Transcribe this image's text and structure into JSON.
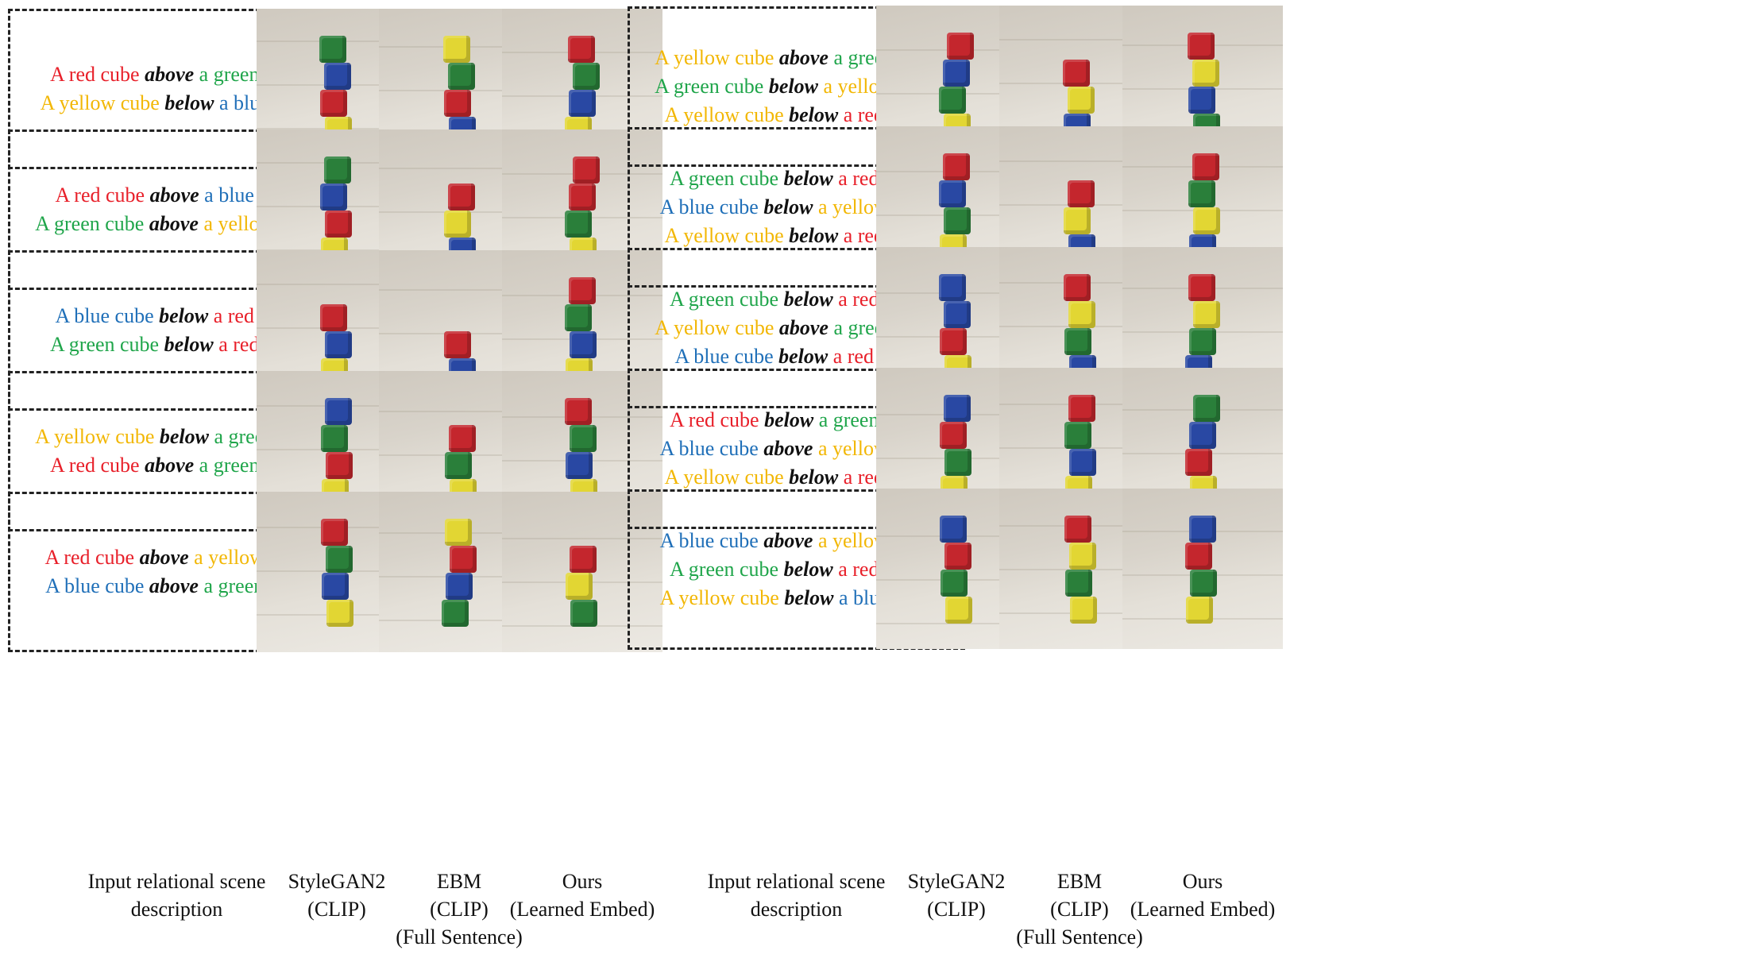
{
  "colors": {
    "red": "#e8202a",
    "green": "#1fa54a",
    "blue": "#1f6fb8",
    "yellow": "#f2b705"
  },
  "left_descriptions": [
    [
      [
        {
          "t": "A red cube ",
          "c": "red"
        },
        {
          "t": "above",
          "r": 1
        },
        {
          "t": " a green cube",
          "c": "green"
        }
      ],
      [
        {
          "t": "A yellow cube ",
          "c": "yellow"
        },
        {
          "t": "below",
          "r": 1
        },
        {
          "t": " a blue cube",
          "c": "blue"
        }
      ]
    ],
    [
      [
        {
          "t": "A red cube ",
          "c": "red"
        },
        {
          "t": "above",
          "r": 1
        },
        {
          "t": " a blue cube",
          "c": "blue"
        }
      ],
      [
        {
          "t": "A green cube ",
          "c": "green"
        },
        {
          "t": "above",
          "r": 1
        },
        {
          "t": " a yellow cube",
          "c": "yellow"
        }
      ]
    ],
    [
      [
        {
          "t": "A blue cube ",
          "c": "blue"
        },
        {
          "t": "below",
          "r": 1
        },
        {
          "t": " a red cube",
          "c": "red"
        }
      ],
      [
        {
          "t": "A green cube ",
          "c": "green"
        },
        {
          "t": "below",
          "r": 1
        },
        {
          "t": " a red cube",
          "c": "red"
        }
      ]
    ],
    [
      [
        {
          "t": "A yellow cube ",
          "c": "yellow"
        },
        {
          "t": "below",
          "r": 1
        },
        {
          "t": " a green cube",
          "c": "green"
        }
      ],
      [
        {
          "t": "A red cube ",
          "c": "red"
        },
        {
          "t": "above",
          "r": 1
        },
        {
          "t": " a green cube",
          "c": "green"
        }
      ]
    ],
    [
      [
        {
          "t": "A red cube ",
          "c": "red"
        },
        {
          "t": "above",
          "r": 1
        },
        {
          "t": " a yellow cube",
          "c": "yellow"
        }
      ],
      [
        {
          "t": "A blue cube ",
          "c": "blue"
        },
        {
          "t": "above",
          "r": 1
        },
        {
          "t": " a green cube",
          "c": "green"
        }
      ]
    ]
  ],
  "right_descriptions": [
    [
      [
        {
          "t": "A yellow cube ",
          "c": "yellow"
        },
        {
          "t": "above",
          "r": 1
        },
        {
          "t": " a green cube",
          "c": "green"
        }
      ],
      [
        {
          "t": "A green cube ",
          "c": "green"
        },
        {
          "t": "below",
          "r": 1
        },
        {
          "t": " a yellow cube",
          "c": "yellow"
        }
      ],
      [
        {
          "t": "A yellow cube ",
          "c": "yellow"
        },
        {
          "t": "below",
          "r": 1
        },
        {
          "t": " a red cube",
          "c": "red"
        }
      ]
    ],
    [
      [
        {
          "t": "A green cube ",
          "c": "green"
        },
        {
          "t": "below",
          "r": 1
        },
        {
          "t": " a red cube",
          "c": "red"
        }
      ],
      [
        {
          "t": "A blue cube ",
          "c": "blue"
        },
        {
          "t": "below",
          "r": 1
        },
        {
          "t": " a yellow cube",
          "c": "yellow"
        }
      ],
      [
        {
          "t": "A yellow cube ",
          "c": "yellow"
        },
        {
          "t": "below",
          "r": 1
        },
        {
          "t": " a red cube",
          "c": "red"
        }
      ]
    ],
    [
      [
        {
          "t": "A green cube ",
          "c": "green"
        },
        {
          "t": "below",
          "r": 1
        },
        {
          "t": " a red cube",
          "c": "red"
        }
      ],
      [
        {
          "t": "A yellow cube ",
          "c": "yellow"
        },
        {
          "t": "above",
          "r": 1
        },
        {
          "t": " a green cube",
          "c": "green"
        }
      ],
      [
        {
          "t": "A blue cube ",
          "c": "blue"
        },
        {
          "t": "below",
          "r": 1
        },
        {
          "t": " a red cube",
          "c": "red"
        }
      ]
    ],
    [
      [
        {
          "t": "A red cube ",
          "c": "red"
        },
        {
          "t": "below",
          "r": 1
        },
        {
          "t": " a green cube",
          "c": "green"
        }
      ],
      [
        {
          "t": "A blue cube ",
          "c": "blue"
        },
        {
          "t": "above",
          "r": 1
        },
        {
          "t": " a yellow cube",
          "c": "yellow"
        }
      ],
      [
        {
          "t": "A yellow cube ",
          "c": "yellow"
        },
        {
          "t": "below",
          "r": 1
        },
        {
          "t": " a red cube",
          "c": "red"
        }
      ]
    ],
    [
      [
        {
          "t": "A blue cube ",
          "c": "blue"
        },
        {
          "t": "above",
          "r": 1
        },
        {
          "t": " a yellow cube",
          "c": "yellow"
        }
      ],
      [
        {
          "t": "A green cube ",
          "c": "green"
        },
        {
          "t": "below",
          "r": 1
        },
        {
          "t": " a red cube",
          "c": "red"
        }
      ],
      [
        {
          "t": "A yellow cube ",
          "c": "yellow"
        },
        {
          "t": "below",
          "r": 1
        },
        {
          "t": " a blue cube",
          "c": "blue"
        }
      ]
    ]
  ],
  "stacks_left": [
    [
      [
        "green",
        "blue",
        "red",
        "yellow"
      ],
      [
        "yellow",
        "green",
        "red",
        "blue"
      ],
      [
        "red",
        "green",
        "blue",
        "yellow"
      ]
    ],
    [
      [
        "green",
        "blue",
        "red",
        "yellow"
      ],
      [
        "red",
        "yellow",
        "blue"
      ],
      [
        "red",
        "red",
        "green",
        "yellow"
      ]
    ],
    [
      [
        "red",
        "blue",
        "yellow"
      ],
      [
        "red",
        "blue"
      ],
      [
        "red",
        "green",
        "blue",
        "yellow"
      ]
    ],
    [
      [
        "blue",
        "green",
        "red",
        "yellow"
      ],
      [
        "red",
        "green",
        "yellow"
      ],
      [
        "red",
        "green",
        "blue",
        "yellow"
      ]
    ],
    [
      [
        "red",
        "green",
        "blue",
        "yellow"
      ],
      [
        "yellow",
        "red",
        "blue",
        "green"
      ],
      [
        "red",
        "yellow",
        "green"
      ]
    ]
  ],
  "stacks_right": [
    [
      [
        "red",
        "blue",
        "green",
        "yellow"
      ],
      [
        "red",
        "yellow",
        "blue"
      ],
      [
        "red",
        "yellow",
        "blue",
        "green"
      ]
    ],
    [
      [
        "red",
        "blue",
        "green",
        "yellow"
      ],
      [
        "red",
        "yellow",
        "blue"
      ],
      [
        "red",
        "green",
        "yellow",
        "blue"
      ]
    ],
    [
      [
        "blue",
        "blue",
        "red",
        "yellow"
      ],
      [
        "red",
        "yellow",
        "green",
        "blue"
      ],
      [
        "red",
        "yellow",
        "green",
        "blue"
      ]
    ],
    [
      [
        "blue",
        "red",
        "green",
        "yellow"
      ],
      [
        "red",
        "green",
        "blue",
        "yellow"
      ],
      [
        "green",
        "blue",
        "red",
        "yellow"
      ]
    ],
    [
      [
        "blue",
        "red",
        "green",
        "yellow"
      ],
      [
        "red",
        "yellow",
        "green",
        "yellow"
      ],
      [
        "blue",
        "red",
        "green",
        "yellow"
      ]
    ]
  ],
  "captions": {
    "input": "Input relational scene\ndescription",
    "stylegan": "StyleGAN2\n(CLIP)",
    "ebm": "EBM\n(CLIP)\n(Full Sentence)",
    "ours": "Ours\n(Learned Embed)"
  }
}
